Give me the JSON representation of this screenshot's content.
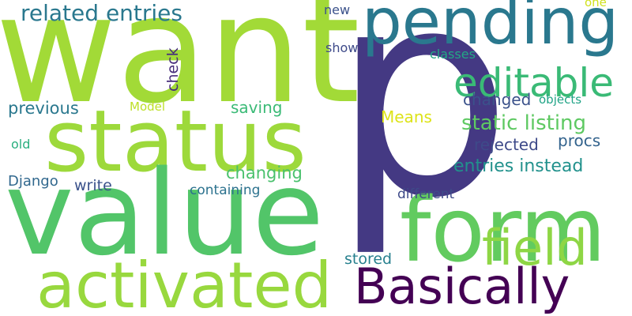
{
  "words": {
    "want": {
      "text": "want",
      "color": "#a2da37"
    },
    "p": {
      "text": "p",
      "color": "#443983"
    },
    "pending": {
      "text": "pending",
      "color": "#2a788e"
    },
    "status": {
      "text": "status",
      "color": "#9dd93b"
    },
    "value": {
      "text": "value",
      "color": "#52c569"
    },
    "form": {
      "text": "form",
      "color": "#62cb5f"
    },
    "activated": {
      "text": "activated",
      "color": "#98d83e"
    },
    "basically": {
      "text": "Basically",
      "color": "#440154"
    },
    "editable": {
      "text": "editable",
      "color": "#3aba76"
    },
    "field": {
      "text": "field",
      "color": "#8ed645"
    },
    "related": {
      "text": "related entries",
      "color": "#2a788e"
    },
    "static": {
      "text": "static listing",
      "color": "#5ec962"
    },
    "instead": {
      "text": "entries instead",
      "color": "#21918c"
    },
    "check": {
      "text": "check",
      "color": "#472d7b"
    },
    "previous": {
      "text": "previous",
      "color": "#2a788e"
    },
    "saving": {
      "text": "saving",
      "color": "#3aba76"
    },
    "means": {
      "text": "Means",
      "color": "#dde318"
    },
    "changed": {
      "text": "changed",
      "color": "#3b528b"
    },
    "rejected": {
      "text": "rejected",
      "color": "#3e4a89"
    },
    "procs": {
      "text": "procs",
      "color": "#33638d"
    },
    "changing": {
      "text": "changing",
      "color": "#4ac16d"
    },
    "django": {
      "text": "Django",
      "color": "#31688e"
    },
    "write": {
      "text": "write",
      "color": "#3b528b"
    },
    "containing": {
      "text": "containing",
      "color": "#2c728e"
    },
    "different": {
      "text": "different",
      "color": "#3e4a89"
    },
    "stored": {
      "text": "stored",
      "color": "#27808e"
    },
    "old": {
      "text": "old",
      "color": "#29af7f"
    },
    "new": {
      "text": "new",
      "color": "#3b528b"
    },
    "show": {
      "text": "show",
      "color": "#3e4a89"
    },
    "classes": {
      "text": "classes",
      "color": "#22a884"
    },
    "model": {
      "text": "Model",
      "color": "#bddf26"
    },
    "objects": {
      "text": "objects",
      "color": "#20a386"
    },
    "one": {
      "text": "one",
      "color": "#d0e11c"
    }
  }
}
